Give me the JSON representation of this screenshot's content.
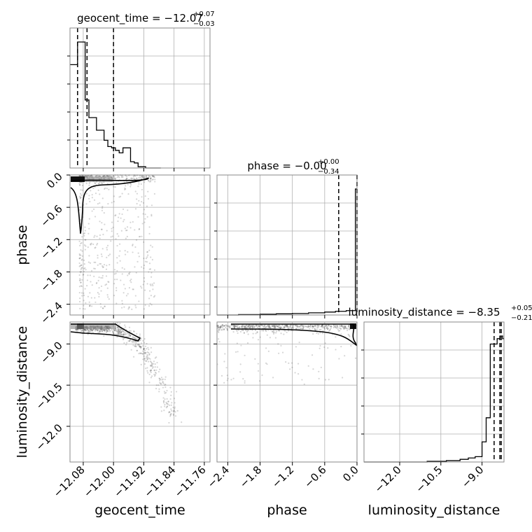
{
  "chart_data": {
    "type": "corner",
    "parameters": [
      "geocent_time",
      "phase",
      "luminosity_distance"
    ],
    "titles": [
      {
        "name": "geocent_time",
        "median": "−12.07",
        "plus": "+0.07",
        "minus": "−0.03"
      },
      {
        "name": "phase",
        "median": "−0.00",
        "plus": "+0.00",
        "minus": "−0.34"
      },
      {
        "name": "luminosity_distance",
        "median": "−8.35",
        "plus": "+0.05",
        "minus": "−0.21"
      }
    ],
    "axes": {
      "geocent_time": {
        "label": "geocent_time",
        "range": [
          -12.115,
          -11.745
        ],
        "ticks": [
          -12.08,
          -12.0,
          -11.92,
          -11.84,
          -11.76
        ],
        "tick_labels": [
          "−12.08",
          "−12.00",
          "−11.92",
          "−11.84",
          "−11.76"
        ]
      },
      "phase": {
        "label": "phase",
        "range": [
          -2.6,
          0.0
        ],
        "ticks": [
          -2.4,
          -1.8,
          -1.2,
          -0.6,
          0.0
        ],
        "tick_labels": [
          "−2.4",
          "−1.8",
          "−1.2",
          "−0.6",
          "0.0"
        ]
      },
      "luminosity_distance": {
        "label": "luminosity_distance",
        "range": [
          -13.3,
          -8.2
        ],
        "ticks": [
          -12.0,
          -10.5,
          -9.0
        ],
        "tick_labels": [
          "−12.0",
          "−10.5",
          "−9.0"
        ]
      }
    },
    "quantiles": {
      "geocent_time": [
        -12.095,
        -12.07,
        -12.0
      ],
      "phase": [
        -0.34,
        0.0,
        0.0
      ],
      "luminosity_distance": [
        -8.56,
        -8.35,
        -8.3
      ]
    },
    "histograms": {
      "geocent_time": {
        "edges": [
          -12.115,
          -12.095,
          -12.085,
          -12.075,
          -12.065,
          -12.055,
          -12.045,
          -12.035,
          -12.025,
          -12.015,
          -12.005,
          -11.995,
          -11.985,
          -11.975,
          -11.965,
          -11.955,
          -11.945,
          -11.935,
          -11.925,
          -11.915,
          -11.905,
          -11.895,
          -11.885,
          -11.875
        ],
        "counts": [
          82,
          100,
          100,
          54,
          40,
          40,
          30,
          30,
          22,
          17,
          16,
          14,
          12,
          16,
          16,
          5,
          4,
          1,
          1,
          0,
          0,
          0,
          0
        ]
      },
      "phase": {
        "edges": [
          -2.6,
          -2.2,
          -1.8,
          -1.5,
          -1.2,
          -0.9,
          -0.6,
          -0.4,
          -0.2,
          -0.1,
          -0.03,
          0.0
        ],
        "counts": [
          0,
          0.3,
          0.5,
          0.8,
          1,
          1.5,
          2,
          2.5,
          3,
          3,
          86
        ]
      },
      "luminosity_distance": {
        "edges": [
          -13.3,
          -11.0,
          -10.3,
          -9.8,
          -9.5,
          -9.25,
          -9.0,
          -8.85,
          -8.7,
          -8.55,
          -8.45,
          -8.35,
          -8.25,
          -8.2
        ],
        "counts": [
          0,
          0.5,
          1,
          2,
          3,
          4,
          15,
          33,
          88,
          88,
          92,
          94,
          92
        ]
      }
    },
    "grid": true
  },
  "colors": {
    "hist": "#000000",
    "points": "#444444",
    "grid": "#b0b0b0",
    "frame": "#888888"
  }
}
